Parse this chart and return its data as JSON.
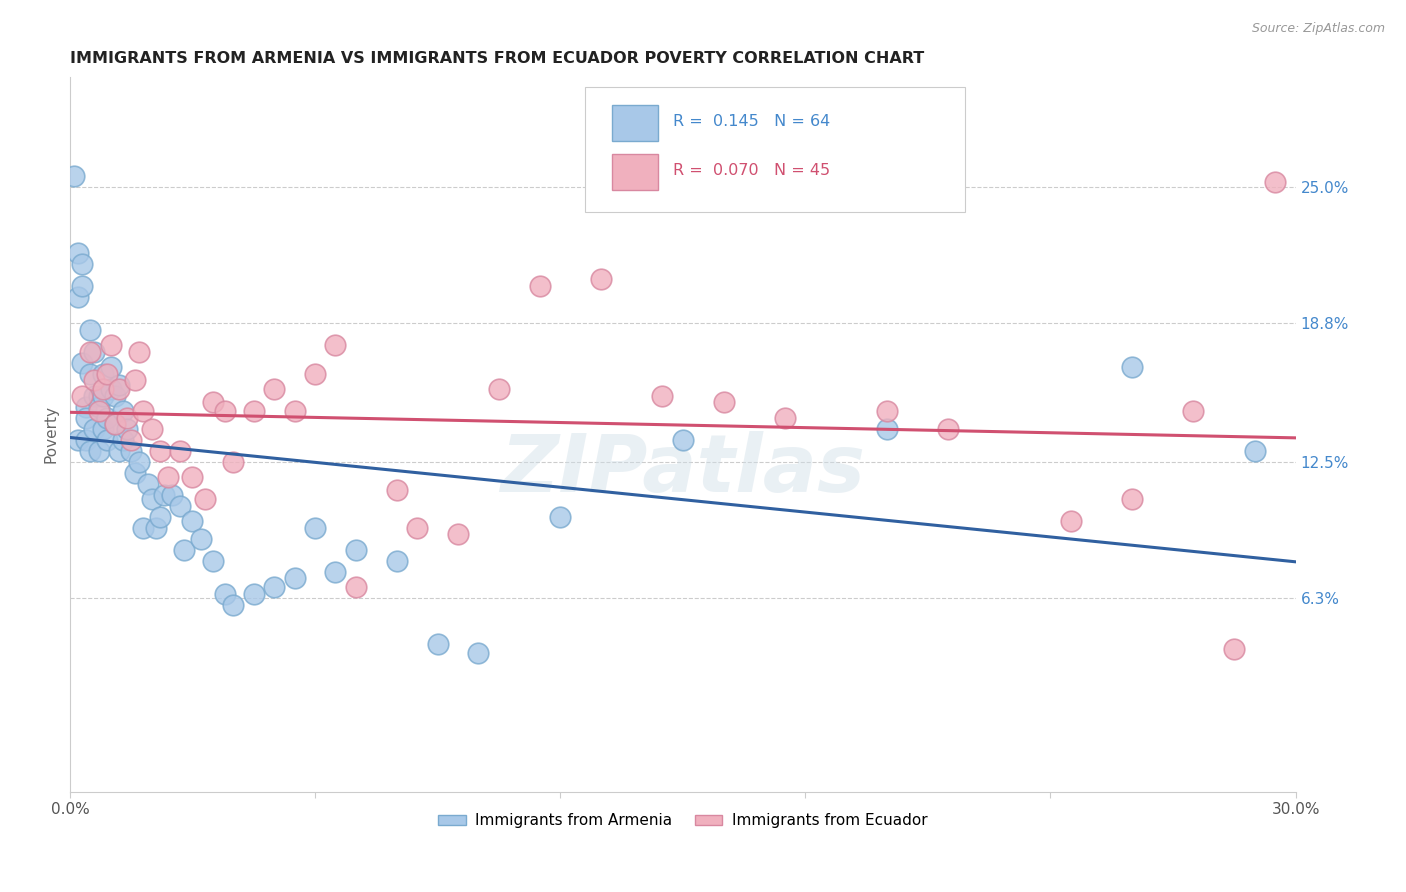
{
  "title": "IMMIGRANTS FROM ARMENIA VS IMMIGRANTS FROM ECUADOR POVERTY CORRELATION CHART",
  "source_text": "Source: ZipAtlas.com",
  "ylabel": "Poverty",
  "xlim": [
    0.0,
    0.3
  ],
  "ylim": [
    -0.025,
    0.3
  ],
  "ytick_labels": [
    "6.3%",
    "12.5%",
    "18.8%",
    "25.0%"
  ],
  "ytick_vals": [
    0.063,
    0.125,
    0.188,
    0.25
  ],
  "r_armenia": 0.145,
  "n_armenia": 64,
  "r_ecuador": 0.07,
  "n_ecuador": 45,
  "color_armenia": "#a8c8e8",
  "color_ecuador": "#f0b0be",
  "line_color_armenia": "#3060a0",
  "line_color_ecuador": "#d05070",
  "watermark": "ZIPatlas",
  "background_color": "#ffffff",
  "grid_color": "#cccccc",
  "armenia_x": [
    0.001,
    0.002,
    0.002,
    0.002,
    0.003,
    0.003,
    0.003,
    0.004,
    0.004,
    0.004,
    0.005,
    0.005,
    0.005,
    0.006,
    0.006,
    0.006,
    0.007,
    0.007,
    0.007,
    0.008,
    0.008,
    0.008,
    0.009,
    0.009,
    0.01,
    0.01,
    0.011,
    0.011,
    0.012,
    0.012,
    0.013,
    0.013,
    0.014,
    0.015,
    0.016,
    0.017,
    0.018,
    0.019,
    0.02,
    0.021,
    0.022,
    0.023,
    0.025,
    0.027,
    0.028,
    0.03,
    0.032,
    0.035,
    0.038,
    0.04,
    0.045,
    0.05,
    0.055,
    0.06,
    0.065,
    0.07,
    0.08,
    0.09,
    0.1,
    0.12,
    0.15,
    0.2,
    0.26,
    0.29
  ],
  "armenia_y": [
    0.255,
    0.22,
    0.2,
    0.135,
    0.205,
    0.215,
    0.17,
    0.135,
    0.15,
    0.145,
    0.185,
    0.165,
    0.13,
    0.155,
    0.14,
    0.175,
    0.155,
    0.15,
    0.13,
    0.155,
    0.14,
    0.165,
    0.135,
    0.145,
    0.158,
    0.168,
    0.142,
    0.155,
    0.13,
    0.16,
    0.135,
    0.148,
    0.14,
    0.13,
    0.12,
    0.125,
    0.095,
    0.115,
    0.108,
    0.095,
    0.1,
    0.11,
    0.11,
    0.105,
    0.085,
    0.098,
    0.09,
    0.08,
    0.065,
    0.06,
    0.065,
    0.068,
    0.072,
    0.095,
    0.075,
    0.085,
    0.08,
    0.042,
    0.038,
    0.1,
    0.135,
    0.14,
    0.168,
    0.13
  ],
  "ecuador_x": [
    0.003,
    0.005,
    0.006,
    0.007,
    0.008,
    0.009,
    0.01,
    0.011,
    0.012,
    0.014,
    0.015,
    0.016,
    0.017,
    0.018,
    0.02,
    0.022,
    0.024,
    0.027,
    0.03,
    0.033,
    0.035,
    0.038,
    0.04,
    0.045,
    0.05,
    0.055,
    0.06,
    0.065,
    0.07,
    0.08,
    0.085,
    0.095,
    0.105,
    0.115,
    0.13,
    0.145,
    0.16,
    0.175,
    0.2,
    0.215,
    0.245,
    0.26,
    0.275,
    0.285,
    0.295
  ],
  "ecuador_y": [
    0.155,
    0.175,
    0.162,
    0.148,
    0.158,
    0.165,
    0.178,
    0.142,
    0.158,
    0.145,
    0.135,
    0.162,
    0.175,
    0.148,
    0.14,
    0.13,
    0.118,
    0.13,
    0.118,
    0.108,
    0.152,
    0.148,
    0.125,
    0.148,
    0.158,
    0.148,
    0.165,
    0.178,
    0.068,
    0.112,
    0.095,
    0.092,
    0.158,
    0.205,
    0.208,
    0.155,
    0.152,
    0.145,
    0.148,
    0.14,
    0.098,
    0.108,
    0.148,
    0.04,
    0.252
  ]
}
